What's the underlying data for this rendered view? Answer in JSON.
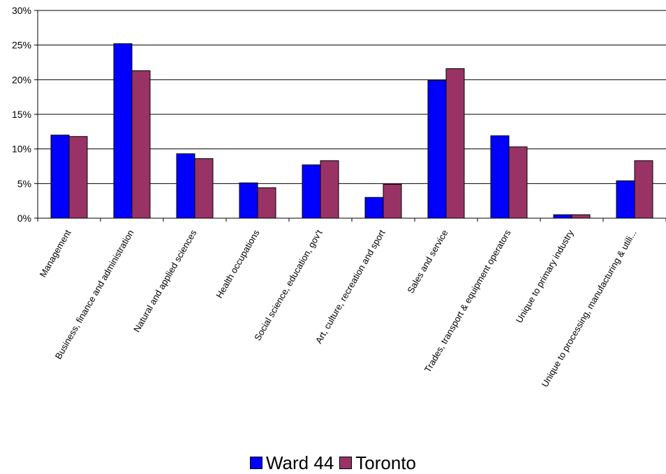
{
  "chart_data": {
    "type": "bar",
    "title": "",
    "xlabel": "",
    "ylabel": "",
    "ylim": [
      0,
      30
    ],
    "yticks": [
      "0%",
      "5%",
      "10%",
      "15%",
      "20%",
      "25%",
      "30%"
    ],
    "ytick_values": [
      0,
      5,
      10,
      15,
      20,
      25,
      30
    ],
    "grid": true,
    "legend_position": "bottom-center",
    "categories": [
      "Management",
      "Business, finance and administration",
      "Natural and applied sciences",
      "Health occupations",
      "Social science, education, gov't",
      "Art, culture, recreation and sport",
      "Sales and service",
      "Trades, transport & equipment operators",
      "Unique to primary industry",
      "Unique to processing, manufacturing & utili..."
    ],
    "series": [
      {
        "name": "Ward 44",
        "color": "#0000ff",
        "values": [
          12.0,
          25.2,
          9.3,
          5.1,
          7.7,
          3.0,
          19.9,
          11.9,
          0.5,
          5.4
        ]
      },
      {
        "name": "Toronto",
        "color": "#993366",
        "values": [
          11.8,
          21.3,
          8.6,
          4.4,
          8.3,
          4.9,
          21.6,
          10.3,
          0.5,
          8.3
        ]
      }
    ]
  }
}
